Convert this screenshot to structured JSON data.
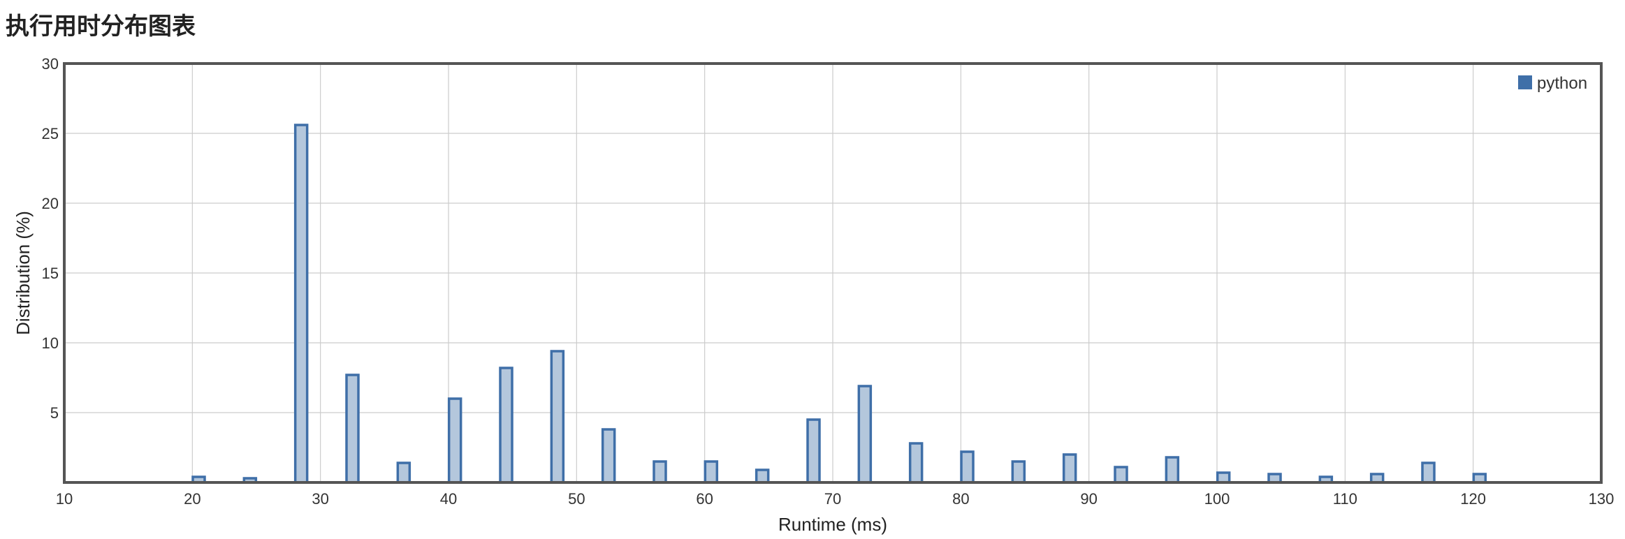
{
  "page": {
    "title": "执行用时分布图表"
  },
  "chart_data": {
    "type": "bar",
    "xlabel": "Runtime (ms)",
    "ylabel": "Distribution (%)",
    "xlim": [
      10,
      130
    ],
    "ylim": [
      0,
      30
    ],
    "x_ticks": [
      10,
      20,
      30,
      40,
      50,
      60,
      70,
      80,
      90,
      100,
      110,
      120,
      130
    ],
    "y_ticks": [
      5,
      10,
      15,
      20,
      25,
      30
    ],
    "grid": true,
    "legend_position": "top-right",
    "colors": {
      "bar_fill": "#b4c7dc",
      "bar_stroke": "#3f6fa8",
      "legend_swatch": "#3f6fa8",
      "frame": "#555555",
      "grid": "#cccccc"
    },
    "series": [
      {
        "name": "python",
        "x": [
          20.5,
          24.5,
          28.5,
          32.5,
          36.5,
          40.5,
          44.5,
          48.5,
          52.5,
          56.5,
          60.5,
          64.5,
          68.5,
          72.5,
          76.5,
          80.5,
          84.5,
          88.5,
          92.5,
          96.5,
          100.5,
          104.5,
          108.5,
          112.5,
          116.5,
          120.5
        ],
        "values": [
          0.4,
          0.3,
          25.6,
          7.7,
          1.4,
          6.0,
          8.2,
          9.4,
          3.8,
          1.5,
          1.5,
          0.9,
          4.5,
          6.9,
          2.8,
          2.2,
          1.5,
          2.0,
          1.1,
          1.8,
          0.7,
          0.6,
          0.4,
          0.6,
          1.4,
          0.6
        ]
      }
    ]
  }
}
